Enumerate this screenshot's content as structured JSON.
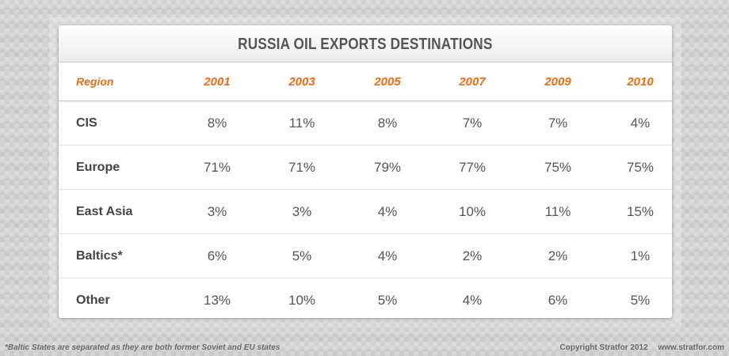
{
  "chart_data": {
    "type": "table",
    "title": "RUSSIA OIL EXPORTS DESTINATIONS",
    "header_label": "Region",
    "columns": [
      "2001",
      "2003",
      "2005",
      "2007",
      "2009",
      "2010"
    ],
    "rows": [
      {
        "label": "CIS",
        "values": [
          "8%",
          "11%",
          "8%",
          "7%",
          "7%",
          "4%"
        ]
      },
      {
        "label": "Europe",
        "values": [
          "71%",
          "71%",
          "79%",
          "77%",
          "75%",
          "75%"
        ]
      },
      {
        "label": "East Asia",
        "values": [
          "3%",
          "3%",
          "4%",
          "10%",
          "11%",
          "15%"
        ]
      },
      {
        "label": "Baltics*",
        "values": [
          "6%",
          "5%",
          "4%",
          "2%",
          "2%",
          "1%"
        ]
      },
      {
        "label": "Other",
        "values": [
          "13%",
          "10%",
          "5%",
          "4%",
          "6%",
          "5%"
        ]
      }
    ],
    "header_color": "#f06b0f"
  },
  "footnote": "*Baltic States are separated as they are both former Soviet and EU states",
  "copyright": "Copyright Stratfor 2012",
  "website": "www.stratfor.com"
}
